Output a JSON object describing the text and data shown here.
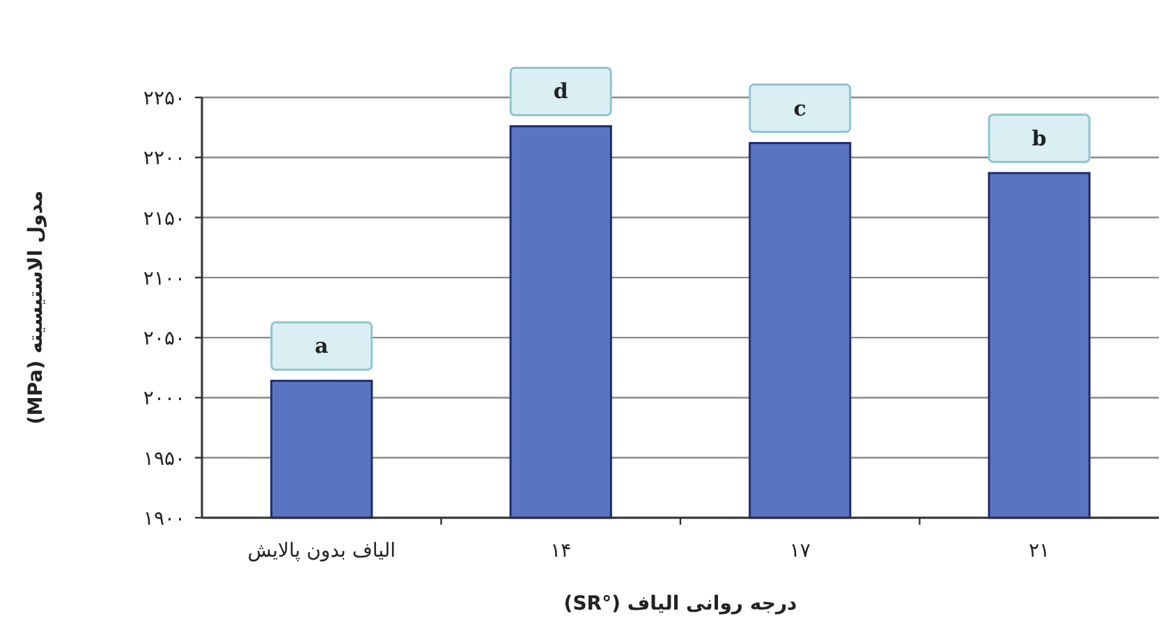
{
  "chart_data": {
    "type": "bar",
    "xlabel": "درجه روانی الیاف (°SR)",
    "ylabel": "مدول الاستیسیته (MPa)",
    "categories": [
      "الیاف بدون پالایش",
      "۱۴",
      "۱۷",
      "۲۱"
    ],
    "values": [
      2014,
      2226,
      2212,
      2187
    ],
    "color": "#5b74c2",
    "ylim": [
      1900,
      2250
    ],
    "yticks": [
      {
        "value": 1900,
        "label": "۱۹۰۰"
      },
      {
        "value": 1950,
        "label": "۱۹۵۰"
      },
      {
        "value": 2000,
        "label": "۲۰۰۰"
      },
      {
        "value": 2050,
        "label": "۲۰۵۰"
      },
      {
        "value": 2100,
        "label": "۲۱۰۰"
      },
      {
        "value": 2150,
        "label": "۲۱۵۰"
      },
      {
        "value": 2200,
        "label": "۲۲۰۰"
      },
      {
        "value": 2250,
        "label": "۲۲۵۰"
      }
    ],
    "grid": "y",
    "annotations": [
      {
        "text": "a",
        "x": "الیاف بدون پالایش",
        "y": 2014
      },
      {
        "text": "d",
        "x": "۱۴",
        "y": 2226
      },
      {
        "text": "c",
        "x": "۱۷",
        "y": 2212
      },
      {
        "text": "b",
        "x": "۲۱",
        "y": 2187
      }
    ]
  }
}
